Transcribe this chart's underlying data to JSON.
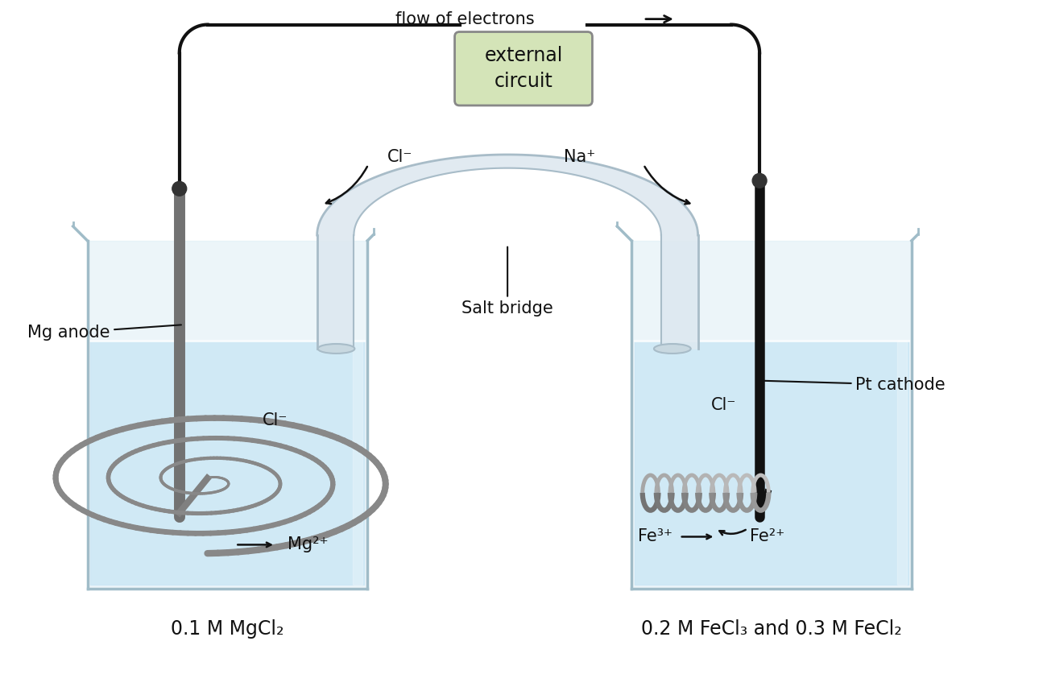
{
  "bg_color": "#ffffff",
  "water_color": "#cde8f5",
  "beaker_body_color": "#ddeef5",
  "beaker_edge_color": "#a0bcc8",
  "beaker_rim_color": "#b8cdd8",
  "salt_bridge_fill": "#dde8f0",
  "salt_bridge_edge": "#a8bcc8",
  "wire_color": "#111111",
  "electrode_mg_color": "#808080",
  "electrode_pt_color": "#111111",
  "knob_color": "#333333",
  "box_fill": "#d4e4b8",
  "box_edge": "#888888",
  "spiral_color": "#888888",
  "coil_color_light": "#a0a0a0",
  "coil_color_dark": "#555555",
  "arrow_color": "#111111",
  "text_color": "#111111",
  "flow_text": "flow of electrons",
  "box_text": "external\ncircuit",
  "cl_minus": "Cl⁻",
  "na_plus": "Na⁺",
  "mg2plus": "Mg²⁺",
  "fe3plus": "Fe³⁺",
  "fe2plus": "Fe²⁺",
  "salt_bridge_label": "Salt bridge",
  "mg_anode_label": "Mg anode",
  "pt_cathode_label": "Pt cathode",
  "left_solution": "0.1 M MgCl₂",
  "right_solution": "0.2 M FeCl₃ and 0.3 M FeCl₂"
}
